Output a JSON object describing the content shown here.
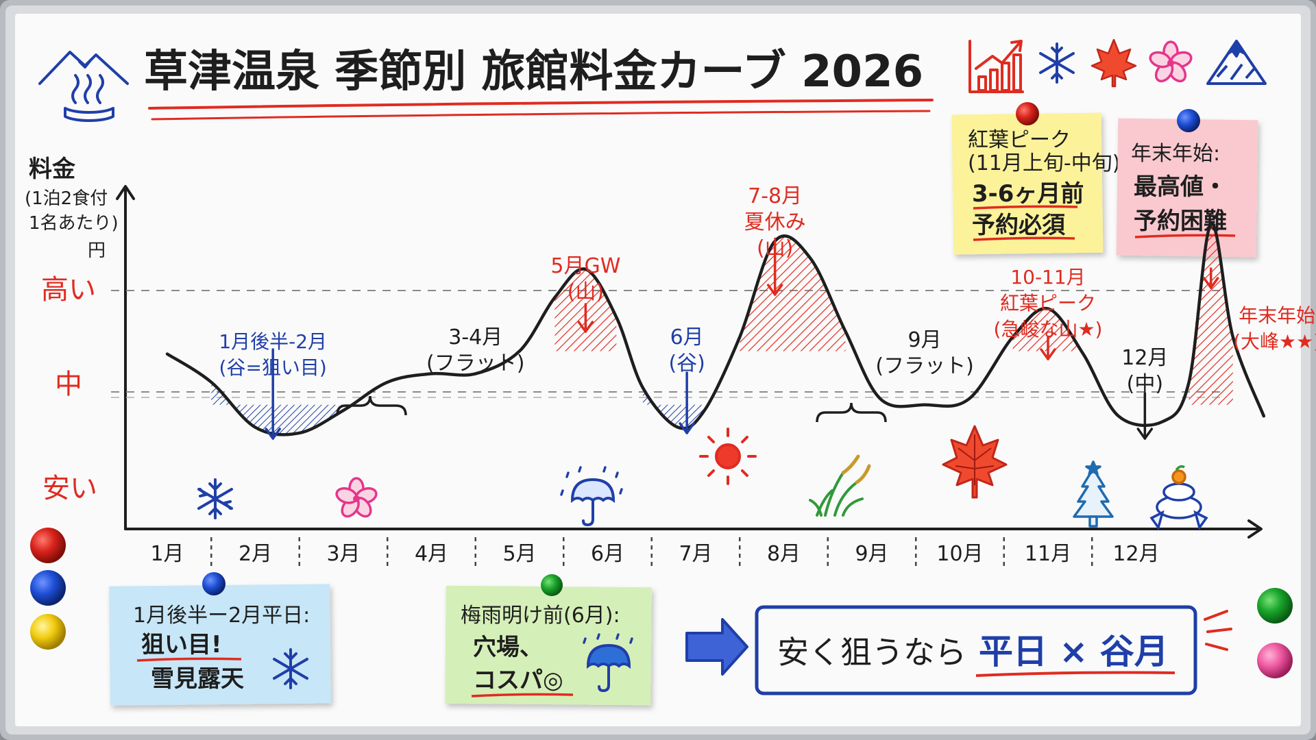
{
  "title": "草津温泉 季節別 旅館料金カーブ 2026",
  "colors": {
    "ink": "#1e1e1e",
    "red": "#e02b20",
    "blue": "#1f3fa8",
    "note_yellow": "#fbf29a",
    "note_pink": "#f9c9cf",
    "note_blue": "#c7e6f7",
    "note_green": "#d5efb8"
  },
  "header_icons": [
    "chart-up-icon",
    "snowflake-icon",
    "maple-leaf-icon",
    "sakura-icon",
    "mountain-icon"
  ],
  "y_axis": {
    "label": [
      "料金",
      "(1泊2食付",
      "1名あたり)",
      "円"
    ],
    "levels": [
      "高い",
      "中",
      "安い"
    ]
  },
  "chart_data": {
    "type": "line",
    "title": "草津温泉 季節別 旅館料金カーブ 2026",
    "x": [
      "1月",
      "2月",
      "3月",
      "4月",
      "5月",
      "6月",
      "7月",
      "8月",
      "9月",
      "10月",
      "11月",
      "12月"
    ],
    "ylabel": "料金 (1泊2食付 1名あたり) 円",
    "y_levels": [
      "安い",
      "中",
      "高い"
    ],
    "ylim": [
      0,
      100
    ],
    "grid": "dashed reference lines at 高い and 中",
    "series": [
      {
        "points": [
          [
            0.0,
            62
          ],
          [
            0.5,
            52
          ],
          [
            1.0,
            36
          ],
          [
            1.5,
            34
          ],
          [
            2.0,
            42
          ],
          [
            2.5,
            52
          ],
          [
            3.0,
            55
          ],
          [
            3.5,
            55
          ],
          [
            4.0,
            63
          ],
          [
            4.4,
            82
          ],
          [
            4.75,
            92
          ],
          [
            5.1,
            75
          ],
          [
            5.4,
            50
          ],
          [
            5.8,
            36
          ],
          [
            6.1,
            42
          ],
          [
            6.5,
            68
          ],
          [
            6.9,
            102
          ],
          [
            7.3,
            96
          ],
          [
            7.7,
            70
          ],
          [
            8.1,
            46
          ],
          [
            8.6,
            44
          ],
          [
            9.1,
            46
          ],
          [
            9.6,
            68
          ],
          [
            10.0,
            78
          ],
          [
            10.4,
            62
          ],
          [
            10.8,
            40
          ],
          [
            11.3,
            38
          ],
          [
            11.6,
            52
          ],
          [
            11.85,
            108
          ],
          [
            12.1,
            68
          ],
          [
            12.45,
            40
          ]
        ]
      }
    ],
    "annotations": [
      {
        "text": [
          "1月後半-2月",
          "(谷=狙い目)"
        ],
        "color": "blue",
        "x": 1.2
      },
      {
        "text": [
          "3-4月",
          "(フラット)"
        ],
        "color": "ink",
        "x": 3.5
      },
      {
        "text": [
          "5月GW",
          "(山)"
        ],
        "color": "red",
        "x": 4.75
      },
      {
        "text": [
          "6月",
          "(谷)"
        ],
        "color": "blue",
        "x": 5.9
      },
      {
        "text": [
          "7-8月",
          "夏休み",
          "(山)"
        ],
        "color": "red",
        "x": 6.9
      },
      {
        "text": [
          "9月",
          "(フラット)"
        ],
        "color": "ink",
        "x": 8.6
      },
      {
        "text": [
          "10-11月",
          "紅葉ピーク",
          "(急峻な山★)"
        ],
        "color": "red",
        "x": 10.0
      },
      {
        "text": [
          "12月",
          "(中)"
        ],
        "color": "ink",
        "x": 11.1
      },
      {
        "text": [
          "年末年始",
          "(大峰★★)"
        ],
        "color": "red",
        "x": 12.6
      }
    ]
  },
  "season_icons": [
    "snowflake-icon",
    "sakura-icon",
    "umbrella-rain-icon",
    "sun-icon",
    "susuki-grass-icon",
    "maple-leaf-icon",
    "christmas-tree-icon",
    "kagami-mochi-icon"
  ],
  "notes": {
    "koyo": {
      "lines": [
        "紅葉ピーク",
        "(11月上旬-中旬):",
        "3-6ヶ月前",
        "予約必須"
      ]
    },
    "nenmatsu": {
      "lines": [
        "年末年始:",
        "最高値・",
        "予約困難"
      ]
    },
    "winter": {
      "lines": [
        "1月後半ー2月平日:",
        "狙い目!",
        "雪見露天"
      ]
    },
    "tsuyu": {
      "lines": [
        "梅雨明け前(6月):",
        "穴場、",
        "コスパ◎"
      ]
    }
  },
  "conclusion": {
    "prefix": "安く狙うなら",
    "highlight": "平日 × 谷月"
  }
}
